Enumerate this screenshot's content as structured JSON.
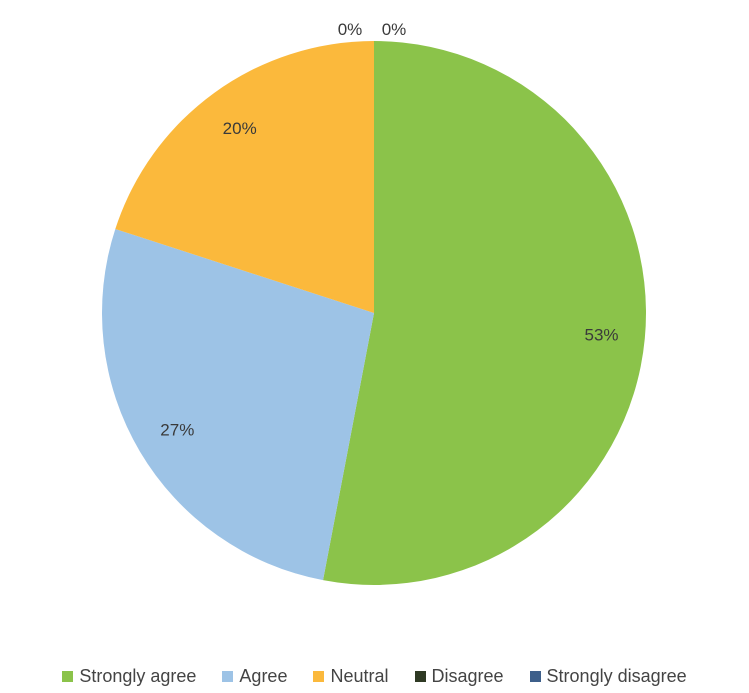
{
  "chart_data": {
    "type": "pie",
    "categories": [
      "Strongly agree",
      "Agree",
      "Neutral",
      "Disagree",
      "Strongly disagree"
    ],
    "values": [
      53,
      27,
      20,
      0,
      0
    ],
    "data_labels": [
      "53%",
      "27%",
      "20%",
      "0%",
      "0%"
    ],
    "colors": [
      "#8bc34a",
      "#9dc3e6",
      "#fbb93c",
      "#2f3a24",
      "#3e5f8a"
    ],
    "start_angle_deg": 0,
    "direction": "clockwise",
    "legend_position": "bottom"
  }
}
